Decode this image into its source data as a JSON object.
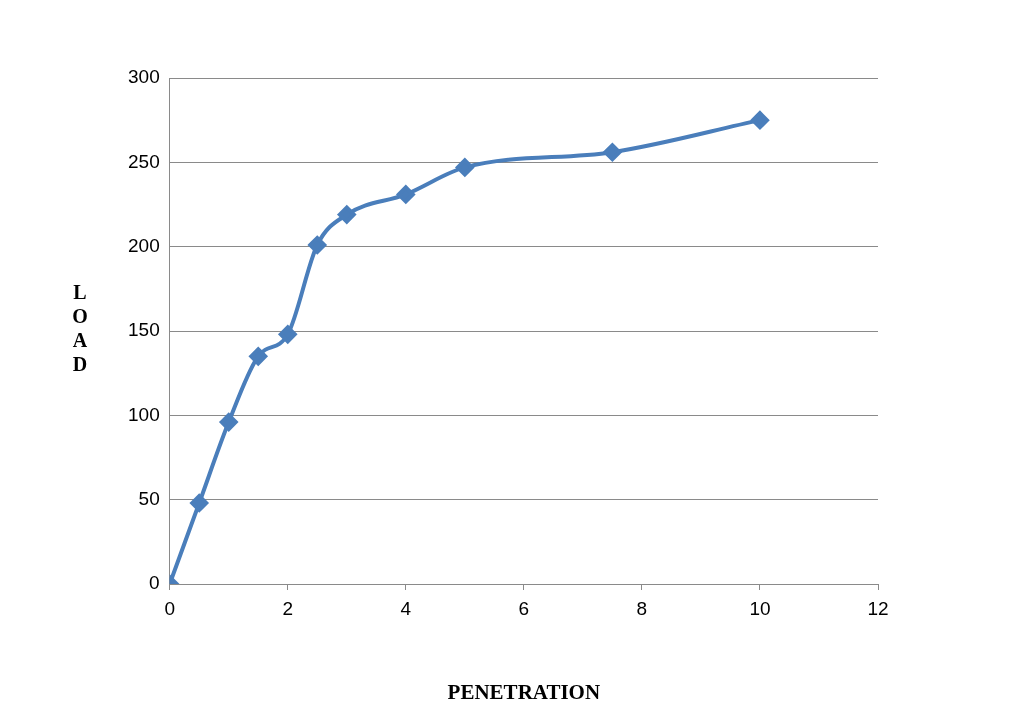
{
  "chart_data": {
    "type": "line",
    "xlabel": "PENETRATION",
    "ylabel": "LOAD",
    "x": [
      0,
      0.5,
      1,
      1.5,
      2,
      2.5,
      3,
      4,
      5,
      7.5,
      10
    ],
    "series": [
      {
        "color": "#4a7ebb",
        "values": [
          0,
          48,
          96,
          135,
          148,
          201,
          219,
          231,
          247,
          256,
          275
        ]
      }
    ],
    "xlim": [
      0,
      12
    ],
    "xticks": [
      0,
      2,
      4,
      6,
      8,
      10,
      12
    ],
    "ylim": [
      0,
      300
    ],
    "yticks": [
      0,
      50,
      100,
      150,
      200,
      250,
      300
    ],
    "grid": "y",
    "legend": false,
    "marker": "diamond",
    "line_style": "solid"
  }
}
